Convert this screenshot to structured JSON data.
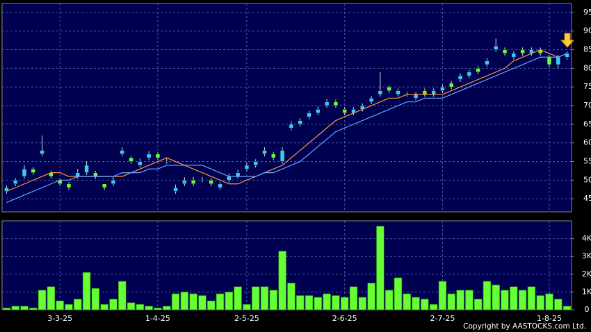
{
  "chart_data": {
    "type": "candlestick",
    "up_color": "#33ccff",
    "down_color": "#66ff33",
    "grid": true,
    "categories": [
      null,
      null,
      null,
      null,
      null,
      null,
      "3-3-25",
      null,
      null,
      null,
      null,
      null,
      null,
      null,
      null,
      null,
      null,
      "1-4-25",
      null,
      null,
      null,
      null,
      null,
      null,
      null,
      null,
      null,
      "2-5-25",
      null,
      null,
      null,
      null,
      null,
      null,
      null,
      null,
      null,
      null,
      "2-6-25",
      null,
      null,
      null,
      null,
      null,
      null,
      null,
      null,
      null,
      null,
      "2-7-25",
      null,
      null,
      null,
      null,
      null,
      null,
      null,
      null,
      null,
      null,
      null,
      "1-8-25",
      null,
      null
    ],
    "open": [
      47,
      49,
      51,
      53,
      57,
      52,
      50,
      49,
      51,
      52,
      52,
      49,
      49,
      57,
      56,
      54,
      56,
      57,
      55,
      47,
      49,
      50,
      50,
      50,
      48,
      50,
      51,
      53,
      54,
      57,
      57,
      55,
      64,
      65,
      67,
      68,
      70,
      71,
      69,
      68,
      69,
      71,
      73,
      75,
      73,
      73,
      72,
      74,
      73,
      74,
      76,
      77,
      78,
      80,
      81,
      85,
      85,
      83,
      85,
      84,
      85,
      83,
      81,
      83
    ],
    "high": [
      48.6,
      50.5,
      54,
      53.5,
      62,
      52.5,
      50.5,
      49.5,
      53,
      55,
      52.5,
      49,
      50.8,
      58.8,
      56.5,
      55.8,
      57.8,
      57.5,
      55.8,
      48.8,
      50.8,
      50.8,
      50.8,
      50.6,
      49.6,
      51.8,
      52.8,
      54.8,
      55.6,
      58.8,
      57.6,
      58.8,
      65.8,
      66.6,
      68.6,
      69.8,
      71.8,
      71.6,
      69.6,
      69.6,
      70.6,
      72.6,
      79,
      75.5,
      74.6,
      73.6,
      73.6,
      74.6,
      74.6,
      75.6,
      76.6,
      78.6,
      79.6,
      80.6,
      82.8,
      88,
      85.6,
      84.6,
      85.6,
      85.6,
      85.6,
      83.6,
      83.6,
      84.6
    ],
    "low": [
      46.4,
      48.4,
      50.4,
      51.4,
      56.4,
      50.4,
      48.4,
      47.4,
      50.4,
      51.4,
      50.4,
      47.4,
      48.4,
      56.4,
      54.4,
      53.4,
      55.4,
      55.4,
      54.4,
      46.4,
      48.4,
      48.4,
      49.4,
      48.4,
      47.4,
      49.4,
      50.4,
      52.4,
      53.4,
      56.4,
      55.4,
      54.4,
      63.4,
      64.4,
      66.4,
      67.4,
      69.4,
      69.4,
      67.4,
      67.4,
      68.4,
      70.4,
      72.4,
      73.4,
      72.4,
      72.4,
      71.4,
      72.4,
      72.4,
      73.4,
      74.4,
      76.4,
      77.4,
      78.4,
      80.4,
      84.4,
      83.4,
      82.4,
      83.4,
      83.4,
      83.4,
      80.4,
      80,
      82.4
    ],
    "close": [
      48,
      50,
      53,
      52,
      58,
      51,
      49,
      48,
      52,
      54,
      51,
      48,
      50,
      58,
      55,
      55,
      57,
      56,
      55,
      48,
      50,
      49,
      50,
      49,
      49,
      51,
      52,
      54,
      55,
      58,
      56,
      58,
      65,
      66,
      68,
      69,
      71,
      70,
      68,
      69,
      70,
      72,
      74,
      74,
      74,
      73,
      73,
      73,
      74,
      75,
      75,
      78,
      79,
      79,
      82,
      86,
      84,
      84,
      84,
      85,
      84,
      81,
      83,
      84
    ],
    "series": [
      {
        "color": "#ff9933",
        "values": [
          47,
          48,
          49,
          50,
          51,
          52,
          52,
          51,
          51,
          51,
          51,
          51,
          51,
          51,
          52,
          53,
          54,
          55,
          56,
          55,
          54,
          53,
          52,
          51,
          50,
          49,
          49,
          50,
          51,
          52,
          53,
          54,
          56,
          58,
          60,
          62,
          64,
          66,
          67,
          68,
          69,
          70,
          71,
          72,
          72,
          73,
          73,
          73,
          73,
          73,
          74,
          75,
          76,
          77,
          78,
          79,
          80,
          82,
          83,
          84,
          85,
          84,
          83,
          84
        ]
      },
      {
        "color": "#66aaff",
        "values": [
          44,
          45,
          46,
          47,
          48,
          49,
          50,
          50,
          51,
          51,
          51,
          51,
          51,
          52,
          52,
          52,
          53,
          53,
          54,
          54,
          54,
          54,
          54,
          53,
          52,
          51,
          51,
          51,
          51,
          52,
          52,
          53,
          54,
          55,
          57,
          59,
          61,
          63,
          64,
          65,
          66,
          67,
          68,
          69,
          70,
          71,
          71,
          72,
          72,
          72,
          73,
          74,
          75,
          76,
          77,
          78,
          79,
          80,
          81,
          82,
          83,
          83,
          83,
          84
        ]
      }
    ],
    "ylim": [
      41.5,
      97.4
    ],
    "yticks": [
      45,
      50,
      55,
      60,
      65,
      70,
      75,
      80,
      85,
      90,
      95
    ],
    "volume": {
      "color": "#66ff33",
      "values": [
        100,
        200,
        200,
        100,
        1100,
        1300,
        500,
        300,
        600,
        2100,
        1200,
        300,
        600,
        1600,
        400,
        300,
        200,
        100,
        200,
        900,
        1000,
        900,
        800,
        500,
        900,
        1000,
        1300,
        300,
        1300,
        1300,
        1100,
        3300,
        1500,
        800,
        800,
        700,
        900,
        800,
        700,
        1300,
        700,
        1500,
        4700,
        1100,
        1800,
        900,
        700,
        600,
        300,
        1600,
        900,
        1100,
        1100,
        600,
        1600,
        1400,
        1100,
        1300,
        1100,
        1300,
        800,
        900,
        600,
        200
      ],
      "ylim": [
        0,
        5000
      ],
      "yticks": [
        0,
        {
          "value": 1000,
          "label": "1K"
        },
        {
          "value": 2000,
          "label": "2K"
        },
        {
          "value": 3000,
          "label": "3K"
        },
        {
          "value": 4000,
          "label": "4K"
        }
      ]
    },
    "copyright": "Copyright by AASTOCKS.com Ltd."
  }
}
